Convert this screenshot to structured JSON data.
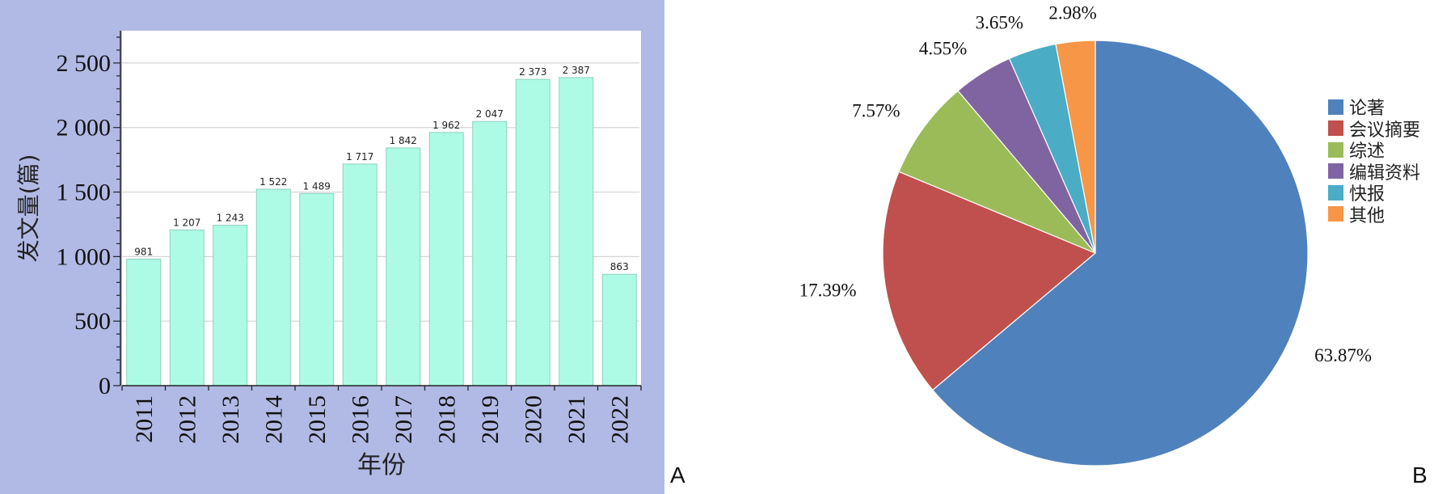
{
  "chart_data": [
    {
      "type": "bar",
      "panel_label": "A",
      "xlabel": "年份",
      "ylabel": "发文量(篇)",
      "categories": [
        "2011",
        "2012",
        "2013",
        "2014",
        "2015",
        "2016",
        "2017",
        "2018",
        "2019",
        "2020",
        "2021",
        "2022"
      ],
      "values": [
        981,
        1207,
        1243,
        1522,
        1489,
        1717,
        1842,
        1962,
        2047,
        2373,
        2387,
        863
      ],
      "data_labels": [
        "981",
        "1 207",
        "1 243",
        "1 522",
        "1 489",
        "1 717",
        "1 842",
        "1 962",
        "2 047",
        "2 373",
        "2 387",
        "863"
      ],
      "ylim": [
        0,
        2750
      ],
      "yticks": [
        0,
        500,
        1000,
        1500,
        2000,
        2500
      ],
      "ytick_labels": [
        "0",
        "500",
        "1 000",
        "1 500",
        "2 000",
        "2 500"
      ],
      "grid": "horizontal",
      "bar_color": "#adfbe5",
      "background_color": "#b1bae5"
    },
    {
      "type": "pie",
      "panel_label": "B",
      "labels": [
        "论著",
        "会议摘要",
        "综述",
        "编辑资料",
        "快报",
        "其他"
      ],
      "values": [
        63.87,
        17.39,
        7.57,
        4.55,
        3.65,
        2.98
      ],
      "value_labels": [
        "63.87%",
        "17.39%",
        "7.57%",
        "4.55%",
        "3.65%",
        "2.98%"
      ],
      "colors": [
        "#4f81bd",
        "#c0504d",
        "#9bbb59",
        "#8064a2",
        "#4bacc6",
        "#f79646"
      ],
      "legend_position": "right"
    }
  ]
}
